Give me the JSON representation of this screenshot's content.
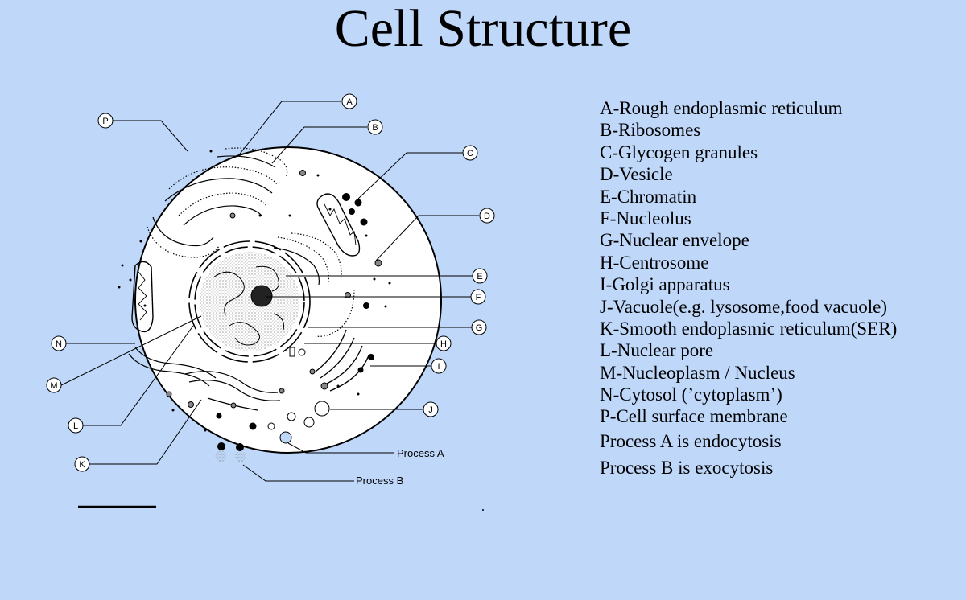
{
  "title": "Cell Structure",
  "labels": [
    "A",
    "B",
    "C",
    "D",
    "E",
    "F",
    "G",
    "H",
    "I",
    "J",
    "K",
    "L",
    "M",
    "N",
    "P"
  ],
  "process_labels": {
    "a": "Process A",
    "b": "Process B"
  },
  "legend": [
    "A-Rough endoplasmic reticulum",
    "B-Ribosomes",
    "C-Glycogen granules",
    "D-Vesicle",
    "E-Chromatin",
    "F-Nucleolus",
    "G-Nuclear envelope",
    "H-Centrosome",
    "I-Golgi apparatus",
    "J-Vacuole(e.g. lysosome,food vacuole)",
    "K-Smooth endoplasmic reticulum(SER)",
    "L-Nuclear pore",
    "M-Nucleoplasm / Nucleus",
    "N-Cytosol (’cytoplasm’)",
    "P-Cell surface membrane",
    "Process A is endocytosis",
    "Process B is exocytosis"
  ],
  "colors": {
    "background": "#bfd8fa",
    "cell_fill": "#ffffff",
    "ink": "#000000"
  }
}
